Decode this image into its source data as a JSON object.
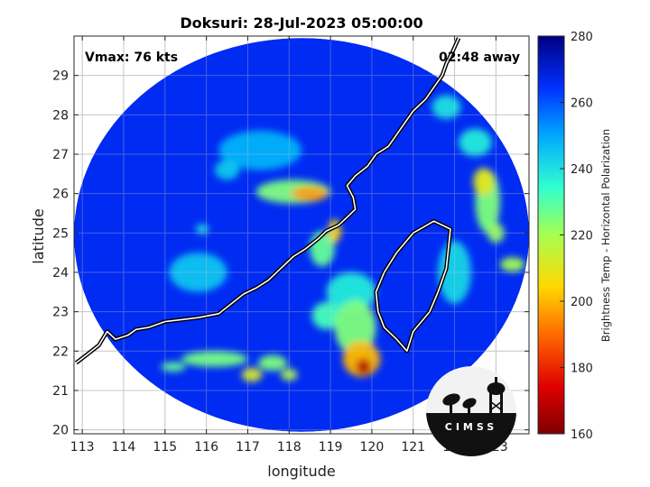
{
  "title": "Doksuri: 28-Jul-2023 05:00:00",
  "vmax_label": "Vmax: 76 kts",
  "time_offset_label": "02:48 away",
  "xlabel": "longitude",
  "ylabel": "latitude",
  "logo_text": "CIMSS",
  "colorbar": {
    "label": "Brightness Temp - Horizontal Polarization",
    "min": 160,
    "max": 280,
    "ticks": [
      "160",
      "180",
      "200",
      "220",
      "240",
      "260",
      "280"
    ],
    "tick_values": [
      160,
      180,
      200,
      220,
      240,
      260,
      280
    ]
  },
  "map": {
    "xlim": [
      112.8,
      123.8
    ],
    "ylim": [
      19.9,
      30.0
    ],
    "x_ticks": [
      113,
      114,
      115,
      116,
      117,
      118,
      119,
      120,
      121,
      122,
      123
    ],
    "y_ticks": [
      20,
      21,
      22,
      23,
      24,
      25,
      26,
      27,
      28,
      29
    ],
    "x_tick_labels": [
      "113",
      "114",
      "115",
      "116",
      "117",
      "118",
      "119",
      "120",
      "121",
      "122",
      "123"
    ],
    "y_tick_labels": [
      "20",
      "21",
      "22",
      "23",
      "24",
      "25",
      "26",
      "27",
      "28",
      "29"
    ],
    "swath_center": [
      118.3,
      24.95
    ],
    "swath_radius_deg": [
      5.5,
      5.0
    ],
    "background_tb": 266,
    "features": [
      {
        "lon": 118.5,
        "lat": 26.0,
        "tb": 196,
        "rx": 0.45,
        "ry": 0.18
      },
      {
        "lon": 118.1,
        "lat": 26.05,
        "tb": 225,
        "rx": 0.9,
        "ry": 0.3
      },
      {
        "lon": 119.1,
        "lat": 25.05,
        "tb": 205,
        "rx": 0.15,
        "ry": 0.3
      },
      {
        "lon": 118.8,
        "lat": 24.6,
        "tb": 228,
        "rx": 0.3,
        "ry": 0.45
      },
      {
        "lon": 119.8,
        "lat": 21.6,
        "tb": 168,
        "rx": 0.18,
        "ry": 0.2
      },
      {
        "lon": 119.75,
        "lat": 21.8,
        "tb": 200,
        "rx": 0.45,
        "ry": 0.45
      },
      {
        "lon": 119.6,
        "lat": 22.6,
        "tb": 225,
        "rx": 0.5,
        "ry": 0.7
      },
      {
        "lon": 118.9,
        "lat": 22.9,
        "tb": 232,
        "rx": 0.35,
        "ry": 0.35
      },
      {
        "lon": 117.1,
        "lat": 21.4,
        "tb": 212,
        "rx": 0.25,
        "ry": 0.18
      },
      {
        "lon": 116.2,
        "lat": 21.8,
        "tb": 226,
        "rx": 0.8,
        "ry": 0.2
      },
      {
        "lon": 117.6,
        "lat": 21.7,
        "tb": 225,
        "rx": 0.35,
        "ry": 0.2
      },
      {
        "lon": 118.0,
        "lat": 21.4,
        "tb": 218,
        "rx": 0.2,
        "ry": 0.15
      },
      {
        "lon": 115.2,
        "lat": 21.6,
        "tb": 228,
        "rx": 0.3,
        "ry": 0.12
      },
      {
        "lon": 122.7,
        "lat": 26.3,
        "tb": 210,
        "rx": 0.25,
        "ry": 0.35
      },
      {
        "lon": 122.8,
        "lat": 25.8,
        "tb": 225,
        "rx": 0.3,
        "ry": 0.8
      },
      {
        "lon": 123.0,
        "lat": 25.0,
        "tb": 222,
        "rx": 0.2,
        "ry": 0.25
      },
      {
        "lon": 122.5,
        "lat": 27.3,
        "tb": 238,
        "rx": 0.4,
        "ry": 0.35
      },
      {
        "lon": 121.8,
        "lat": 28.2,
        "tb": 240,
        "rx": 0.35,
        "ry": 0.3
      },
      {
        "lon": 123.4,
        "lat": 24.2,
        "tb": 220,
        "rx": 0.3,
        "ry": 0.18
      },
      {
        "lon": 115.8,
        "lat": 24.0,
        "tb": 245,
        "rx": 0.7,
        "ry": 0.5
      },
      {
        "lon": 117.3,
        "lat": 27.1,
        "tb": 248,
        "rx": 1.0,
        "ry": 0.5
      },
      {
        "lon": 115.9,
        "lat": 25.1,
        "tb": 238,
        "rx": 0.15,
        "ry": 0.12
      },
      {
        "lon": 116.5,
        "lat": 26.6,
        "tb": 244,
        "rx": 0.3,
        "ry": 0.25
      },
      {
        "lon": 119.5,
        "lat": 23.5,
        "tb": 238,
        "rx": 0.6,
        "ry": 0.5
      },
      {
        "lon": 122.0,
        "lat": 24.0,
        "tb": 242,
        "rx": 0.4,
        "ry": 0.8
      }
    ],
    "coastline": [
      [
        112.85,
        21.7
      ],
      [
        113.1,
        21.9
      ],
      [
        113.4,
        22.15
      ],
      [
        113.6,
        22.5
      ],
      [
        113.8,
        22.3
      ],
      [
        114.1,
        22.4
      ],
      [
        114.3,
        22.55
      ],
      [
        114.6,
        22.6
      ],
      [
        115.0,
        22.75
      ],
      [
        115.4,
        22.8
      ],
      [
        115.8,
        22.85
      ],
      [
        116.3,
        22.95
      ],
      [
        116.6,
        23.2
      ],
      [
        116.9,
        23.45
      ],
      [
        117.2,
        23.6
      ],
      [
        117.5,
        23.8
      ],
      [
        117.8,
        24.1
      ],
      [
        118.1,
        24.4
      ],
      [
        118.4,
        24.6
      ],
      [
        118.7,
        24.85
      ],
      [
        118.9,
        25.05
      ],
      [
        119.2,
        25.2
      ],
      [
        119.4,
        25.4
      ],
      [
        119.6,
        25.6
      ],
      [
        119.55,
        25.9
      ],
      [
        119.4,
        26.2
      ],
      [
        119.6,
        26.45
      ],
      [
        119.9,
        26.7
      ],
      [
        120.1,
        27.0
      ],
      [
        120.4,
        27.2
      ],
      [
        120.6,
        27.5
      ],
      [
        120.8,
        27.8
      ],
      [
        121.0,
        28.1
      ],
      [
        121.3,
        28.4
      ],
      [
        121.5,
        28.7
      ],
      [
        121.7,
        29.0
      ],
      [
        121.8,
        29.3
      ],
      [
        121.95,
        29.6
      ],
      [
        122.1,
        29.95
      ]
    ],
    "taiwan": [
      [
        121.5,
        25.3
      ],
      [
        121.9,
        25.1
      ],
      [
        121.85,
        24.6
      ],
      [
        121.8,
        24.1
      ],
      [
        121.6,
        23.5
      ],
      [
        121.4,
        23.0
      ],
      [
        121.0,
        22.5
      ],
      [
        120.85,
        22.0
      ],
      [
        120.6,
        22.3
      ],
      [
        120.3,
        22.6
      ],
      [
        120.15,
        23.0
      ],
      [
        120.1,
        23.5
      ],
      [
        120.3,
        24.0
      ],
      [
        120.6,
        24.5
      ],
      [
        121.0,
        25.0
      ]
    ]
  }
}
